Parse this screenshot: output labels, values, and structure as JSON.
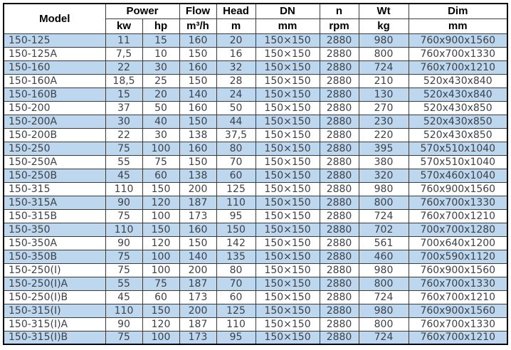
{
  "table": {
    "header": {
      "model": "Model",
      "power": "Power",
      "kw": "kw",
      "hp": "hp",
      "flow": "Flow",
      "flow_unit": "m³/h",
      "head": "Head",
      "head_unit": "m",
      "dn": "DN",
      "dn_unit": "mm",
      "n": "n",
      "n_unit": "rpm",
      "wt": "Wt",
      "wt_unit": "kg",
      "dim": "Dim",
      "dim_unit": "mm"
    },
    "rows": [
      [
        "150-125",
        "11",
        "15",
        "160",
        "20",
        "150×150",
        "2880",
        "980",
        "760x900x1560"
      ],
      [
        "150-125A",
        "7,5",
        "10",
        "150",
        "16",
        "150×150",
        "2880",
        "800",
        "760x700x1330"
      ],
      [
        "150-160",
        "22",
        "30",
        "160",
        "32",
        "150×150",
        "2880",
        "724",
        "760x700x1210"
      ],
      [
        "150-160A",
        "18,5",
        "25",
        "150",
        "28",
        "150×150",
        "2880",
        "210",
        "520x430x840"
      ],
      [
        "150-160B",
        "15",
        "20",
        "140",
        "24",
        "150×150",
        "2880",
        "130",
        "520x430x840"
      ],
      [
        "150-200",
        "37",
        "50",
        "160",
        "50",
        "150×150",
        "2880",
        "270",
        "520x430x850"
      ],
      [
        "150-200A",
        "30",
        "40",
        "150",
        "44",
        "150×150",
        "2880",
        "230",
        "520x430x850"
      ],
      [
        "150-200B",
        "22",
        "30",
        "138",
        "37,5",
        "150×150",
        "2880",
        "220",
        "520x430x850"
      ],
      [
        "150-250",
        "75",
        "100",
        "160",
        "80",
        "150×150",
        "2880",
        "395",
        "570x510x1040"
      ],
      [
        "150-250A",
        "55",
        "75",
        "150",
        "70",
        "150×150",
        "2880",
        "380",
        "570x510x1040"
      ],
      [
        "150-250B",
        "45",
        "60",
        "138",
        "60",
        "150×150",
        "2880",
        "320",
        "570x460x1040"
      ],
      [
        "150-315",
        "110",
        "150",
        "200",
        "125",
        "150×150",
        "2880",
        "980",
        "760x900x1560"
      ],
      [
        "150-315A",
        "90",
        "120",
        "187",
        "110",
        "150×150",
        "2880",
        "800",
        "760x700x1330"
      ],
      [
        "150-315B",
        "75",
        "100",
        "173",
        "95",
        "150×150",
        "2880",
        "724",
        "760x700x1210"
      ],
      [
        "150-350",
        "110",
        "150",
        "160",
        "150",
        "150×150",
        "2880",
        "702",
        "700x700x1280"
      ],
      [
        "150-350A",
        "90",
        "120",
        "150",
        "142",
        "150×150",
        "2880",
        "561",
        "700x640x1200"
      ],
      [
        "150-350B",
        "75",
        "100",
        "140",
        "135",
        "150×150",
        "2880",
        "460",
        "700x590x1120"
      ],
      [
        "150-250(I)",
        "75",
        "100",
        "200",
        "80",
        "150×150",
        "2880",
        "980",
        "760x900x1560"
      ],
      [
        "150-250(I)A",
        "55",
        "75",
        "187",
        "70",
        "150×150",
        "2880",
        "800",
        "760x700x1330"
      ],
      [
        "150-250(I)B",
        "45",
        "60",
        "173",
        "60",
        "150×150",
        "2880",
        "724",
        "760x700x1210"
      ],
      [
        "150-315(I)",
        "110",
        "150",
        "200",
        "125",
        "150×150",
        "2880",
        "980",
        "760x900x1560"
      ],
      [
        "150-315(I)A",
        "90",
        "120",
        "187",
        "110",
        "150×150",
        "2880",
        "800",
        "760x700x1330"
      ],
      [
        "150-315(I)B",
        "75",
        "100",
        "173",
        "95",
        "150×150",
        "2880",
        "724",
        "760x700x1210"
      ]
    ]
  },
  "colors": {
    "row_alt_bg": "#BDD7EE",
    "row_bg": "#FFFFFF",
    "data_text": "#3D4148",
    "header_text": "#000000",
    "inner_border": "#3A3A3A",
    "outer_border": "#000000"
  }
}
